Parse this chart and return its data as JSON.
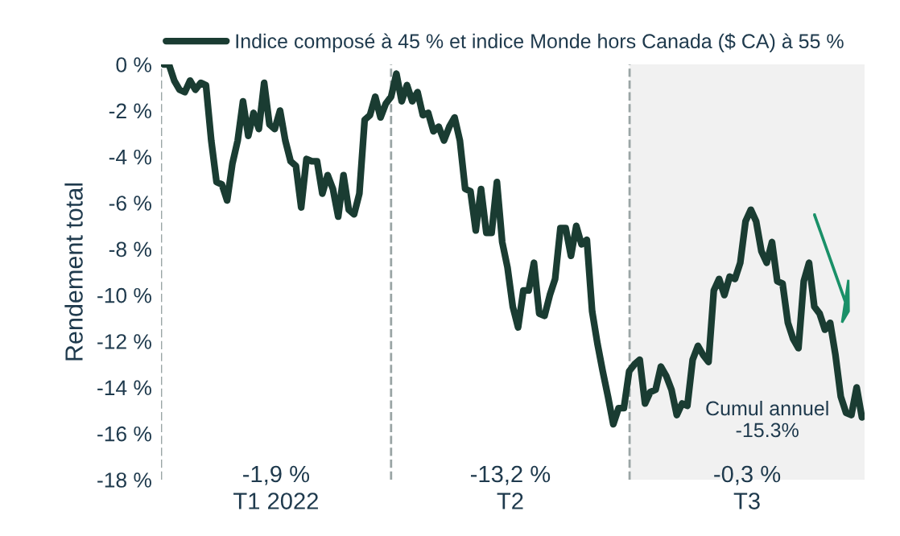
{
  "chart_data": {
    "type": "line",
    "ylabel": "Rendement total",
    "categories": [
      null,
      null,
      null,
      null,
      null,
      null,
      null,
      null,
      null,
      null,
      null,
      null,
      null,
      null,
      null,
      null,
      null,
      null,
      null,
      null,
      null,
      null,
      null,
      null,
      null,
      null,
      null,
      null,
      null,
      null,
      null,
      null,
      null,
      null,
      null,
      null,
      null,
      null,
      null,
      null,
      null,
      null,
      null,
      null,
      null,
      null,
      null,
      null,
      null,
      null,
      null,
      null,
      null,
      null,
      null,
      null,
      null,
      null,
      null,
      null,
      null,
      null,
      null,
      null,
      null,
      null,
      null,
      null,
      null,
      null,
      null,
      null,
      null,
      null,
      null,
      null,
      null,
      null,
      null,
      null,
      null,
      null,
      null,
      null,
      null,
      null,
      null,
      null,
      null,
      null,
      null,
      null,
      null,
      null,
      null,
      null,
      null,
      null,
      null,
      null,
      null,
      null,
      null,
      null,
      null,
      null,
      null,
      null,
      null,
      null,
      null,
      null,
      null,
      null,
      null,
      null,
      null,
      null,
      null,
      null,
      null,
      null,
      null,
      null,
      null,
      null,
      null,
      null,
      null,
      null,
      null,
      null,
      null
    ],
    "series": [
      {
        "name": "Indice composé à 45 % et indice Monde hors Canada ($ CA) à 55 %",
        "color": "#1a3c32",
        "values": [
          0.0,
          0.0,
          -0.7,
          -1.1,
          -1.2,
          -0.7,
          -1.1,
          -0.8,
          -0.9,
          -3.3,
          -5.1,
          -5.2,
          -5.9,
          -4.3,
          -3.3,
          -1.6,
          -3.1,
          -2.1,
          -2.8,
          -0.8,
          -2.6,
          -2.8,
          -2.0,
          -3.3,
          -4.2,
          -4.4,
          -6.2,
          -4.1,
          -4.2,
          -4.2,
          -5.6,
          -4.8,
          -5.4,
          -6.6,
          -4.8,
          -6.3,
          -6.5,
          -5.6,
          -2.4,
          -2.2,
          -1.4,
          -2.3,
          -1.7,
          -1.4,
          -0.4,
          -1.6,
          -0.9,
          -1.6,
          -1.2,
          -2.2,
          -2.1,
          -2.9,
          -2.7,
          -3.3,
          -2.7,
          -2.3,
          -3.3,
          -5.4,
          -5.5,
          -7.2,
          -5.4,
          -7.3,
          -7.3,
          -5.1,
          -7.7,
          -8.8,
          -10.5,
          -11.4,
          -9.8,
          -9.8,
          -8.6,
          -10.8,
          -10.9,
          -10.0,
          -9.3,
          -7.1,
          -7.1,
          -8.3,
          -7.0,
          -7.8,
          -7.6,
          -10.7,
          -12.1,
          -13.3,
          -14.4,
          -15.6,
          -14.9,
          -14.9,
          -13.3,
          -13.0,
          -12.8,
          -14.7,
          -14.2,
          -14.1,
          -13.1,
          -13.5,
          -14.1,
          -15.2,
          -14.7,
          -14.8,
          -12.8,
          -12.2,
          -12.6,
          -12.9,
          -9.8,
          -9.3,
          -10.0,
          -9.2,
          -9.3,
          -8.6,
          -6.8,
          -6.3,
          -6.8,
          -8.1,
          -8.6,
          -7.7,
          -9.4,
          -9.5,
          -11.2,
          -11.9,
          -12.3,
          -9.4,
          -8.6,
          -10.5,
          -10.8,
          -11.5,
          -11.2,
          -12.6,
          -14.4,
          -15.1,
          -15.2,
          -14.0,
          -15.3
        ]
      }
    ],
    "ylim": [
      -18,
      0
    ],
    "yticks": [
      {
        "value": 0,
        "label": "0 %"
      },
      {
        "value": -2,
        "label": "-2 %"
      },
      {
        "value": -4,
        "label": "-4 %"
      },
      {
        "value": -6,
        "label": "-6 %"
      },
      {
        "value": -8,
        "label": "-8 %"
      },
      {
        "value": -10,
        "label": "-10 %"
      },
      {
        "value": -12,
        "label": "-12 %"
      },
      {
        "value": -14,
        "label": "-14 %"
      },
      {
        "value": -16,
        "label": "-16 %"
      },
      {
        "value": -18,
        "label": "-18 %"
      }
    ],
    "tick_labels": "y",
    "annotations": [
      "-1,9 %\nT1 2022",
      "-13,2 %\nT2",
      "-0,3 %\nT3",
      "Cumul annuel\n-15.3%"
    ],
    "legend": "top",
    "grid": false,
    "marker": "none",
    "line_style": "solid"
  }
}
